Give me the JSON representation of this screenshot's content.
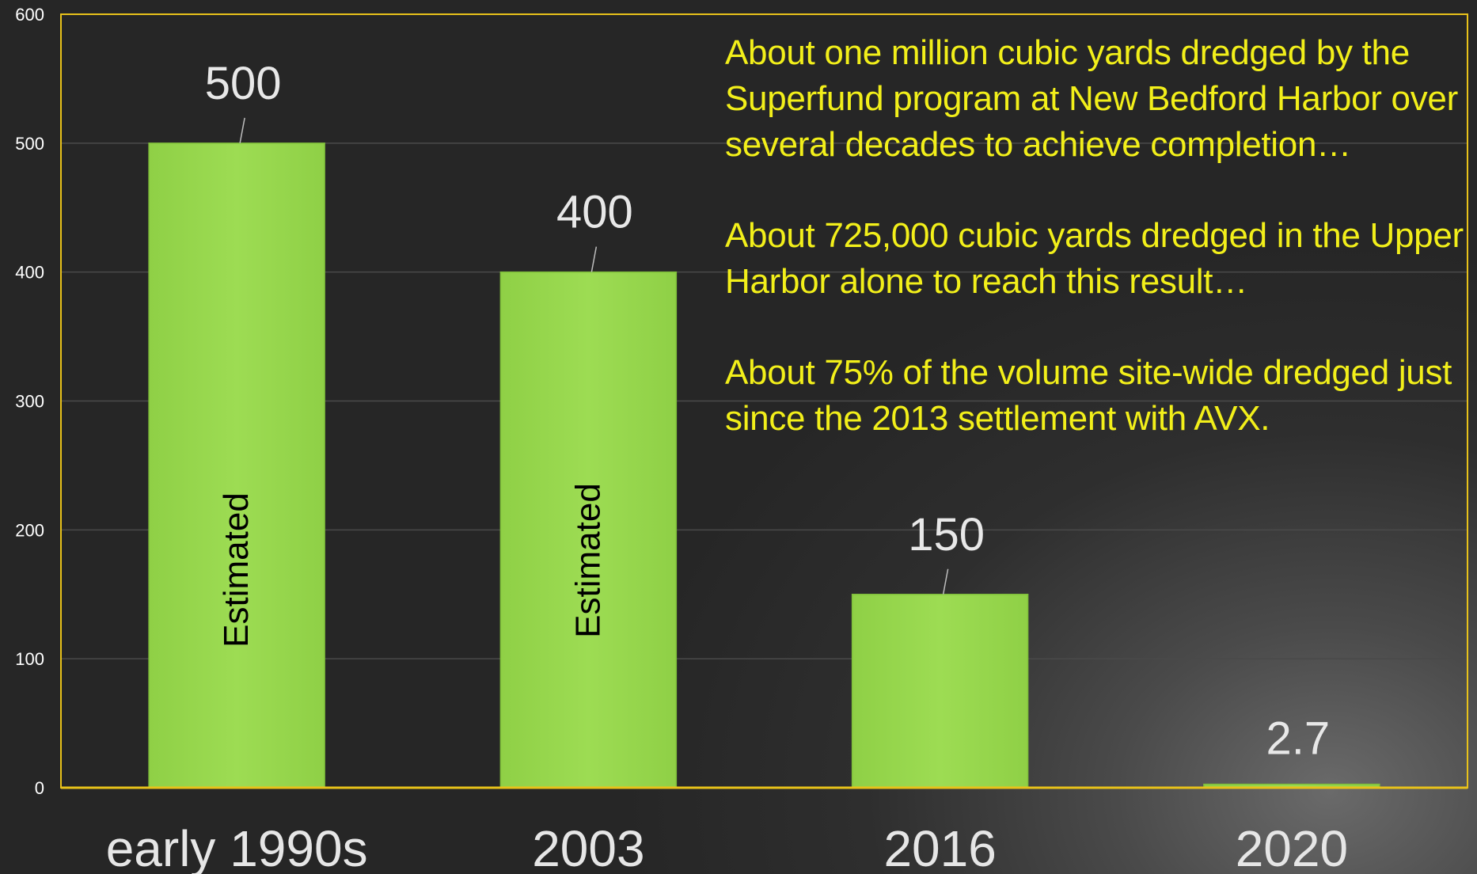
{
  "chart_data": {
    "type": "bar",
    "categories": [
      "early 1990s",
      "2003",
      "2016",
      "2020"
    ],
    "values": [
      500,
      400,
      150,
      2.7
    ],
    "data_labels": [
      "500",
      "400",
      "150",
      "2.7"
    ],
    "bar_inner_labels": [
      "Estimated",
      "Estimated",
      "",
      ""
    ],
    "yticks": [
      0,
      100,
      200,
      300,
      400,
      500,
      600
    ],
    "ylim": [
      0,
      600
    ],
    "title": "",
    "xlabel": "",
    "ylabel": "",
    "grid": true,
    "colors": {
      "bar": "#9ddc53",
      "bar_edge": "#7fbf3a",
      "frame": "#e8c21a",
      "grid": "#4a4a4a",
      "tick_text": "#ffffff",
      "data_label": "#e8e8e8",
      "category_text": "#e6e6e6",
      "inner_label": "#000000"
    }
  },
  "annotations": [
    "About one million cubic yards dredged by the Superfund program at New Bedford Harbor over several decades to achieve completion…",
    "About 725,000 cubic yards dredged in the Upper Harbor alone to reach this result…",
    "About 75% of the volume site-wide dredged just since the 2013 settlement with AVX."
  ],
  "annotation_color": "#f2ef1a"
}
